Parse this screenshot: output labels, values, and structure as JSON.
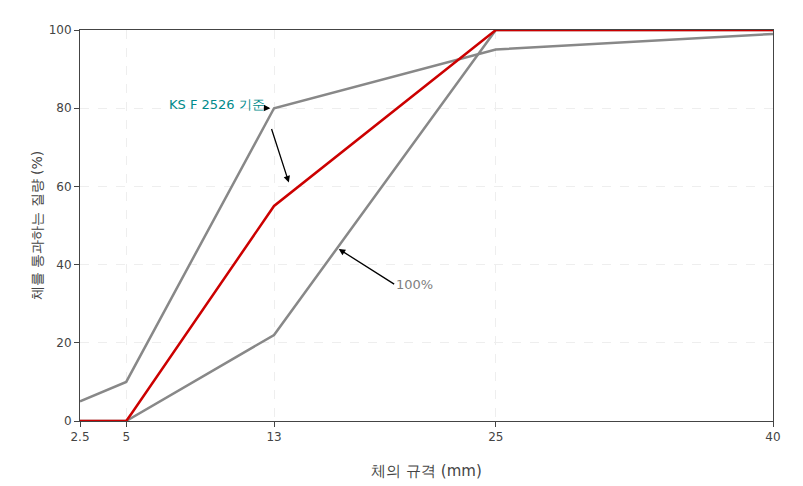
{
  "chart_data": {
    "type": "line",
    "xlabel": "체의 규격 (mm)",
    "ylabel": "체를 통과하는 질량 (%)",
    "xlim": [
      2.5,
      40
    ],
    "ylim": [
      0,
      100
    ],
    "xticks": [
      2.5,
      5,
      13,
      25,
      40
    ],
    "yticks": [
      0,
      20,
      40,
      60,
      80,
      100
    ],
    "grid": true,
    "series": [
      {
        "x": [
          2.5,
          5,
          13,
          25,
          40
        ],
        "values": [
          5,
          10,
          80,
          95,
          99
        ],
        "color": "#888888"
      },
      {
        "x": [
          2.5,
          5,
          13,
          25,
          40
        ],
        "values": [
          0,
          0,
          22,
          100,
          100
        ],
        "color": "#888888"
      },
      {
        "x": [
          2.5,
          5,
          5.3,
          13,
          25,
          40
        ],
        "values": [
          0,
          0,
          2,
          55,
          100,
          100
        ],
        "color": "#cc0000"
      }
    ],
    "annotations": [
      {
        "text": "KS F 2526 기준",
        "x": 7.2,
        "y": 81,
        "color": "#008B8B",
        "arrows": [
          [
            12.8,
            80
          ],
          [
            13.8,
            61
          ]
        ]
      },
      {
        "text": "100%",
        "x": 19.5,
        "y": 35,
        "color": "#808080",
        "arrows": [
          [
            16.5,
            44
          ]
        ]
      }
    ]
  }
}
